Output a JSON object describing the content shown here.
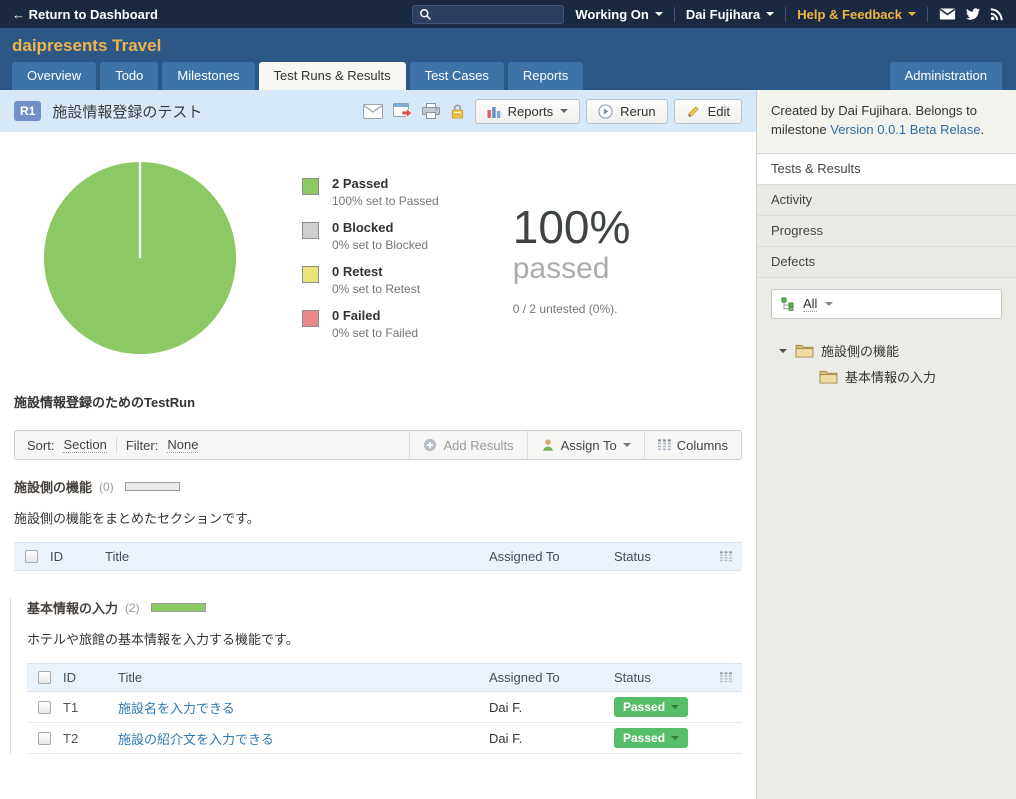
{
  "topbar": {
    "return_link": "← Return to Dashboard",
    "search_value": "",
    "working_on": "Working On",
    "user_menu": "Dai Fujihara",
    "help_menu": "Help & Feedback"
  },
  "project": {
    "title": "daipresents Travel"
  },
  "tabs": {
    "items": [
      {
        "label": "Overview",
        "active": false
      },
      {
        "label": "Todo",
        "active": false
      },
      {
        "label": "Milestones",
        "active": false
      },
      {
        "label": "Test Runs & Results",
        "active": true
      },
      {
        "label": "Test Cases",
        "active": false
      },
      {
        "label": "Reports",
        "active": false
      }
    ],
    "admin": "Administration"
  },
  "run": {
    "badge": "R1",
    "title": "施設情報登録のテスト",
    "buttons": {
      "reports": "Reports",
      "rerun": "Rerun",
      "edit": "Edit"
    }
  },
  "chart_data": {
    "type": "pie",
    "labels": [
      "Passed",
      "Blocked",
      "Retest",
      "Failed"
    ],
    "values": [
      2,
      0,
      0,
      0
    ],
    "percent_labels": [
      "100% set to Passed",
      "0% set to Blocked",
      "0% set to Retest",
      "0% set to Failed"
    ],
    "colors": [
      "#8BC962",
      "#CFCFCF",
      "#E8E37B",
      "#E98989"
    ],
    "total_tests": 2,
    "untested_count": 0,
    "summary_percent": "100%",
    "summary_label": "passed",
    "summary_note": "0 / 2 untested (0%)."
  },
  "legend": [
    {
      "count": "2 Passed",
      "detail": "100% set to Passed"
    },
    {
      "count": "0 Blocked",
      "detail": "0% set to Blocked"
    },
    {
      "count": "0 Retest",
      "detail": "0% set to Retest"
    },
    {
      "count": "0 Failed",
      "detail": "0% set to Failed"
    }
  ],
  "summary": {
    "percent": "100%",
    "label": "passed",
    "note": "0 / 2 untested (0%)."
  },
  "run_description": "施設情報登録のためのTestRun",
  "toolbar": {
    "sort_label": "Sort:",
    "sort_value": "Section",
    "filter_label": "Filter:",
    "filter_value": "None",
    "add_results": "Add Results",
    "assign_to": "Assign To",
    "columns": "Columns"
  },
  "sections": [
    {
      "title": "施設側の機能",
      "count": "(0)",
      "progress_percent": 0,
      "description": "施設側の機能をまとめたセクションです。",
      "columns": [
        "ID",
        "Title",
        "Assigned To",
        "Status"
      ],
      "rows": []
    },
    {
      "title": "基本情報の入力",
      "count": "(2)",
      "progress_percent": 100,
      "description": "ホテルや旅館の基本情報を入力する機能です。",
      "columns": [
        "ID",
        "Title",
        "Assigned To",
        "Status"
      ],
      "rows": [
        {
          "id": "T1",
          "title": "施設名を入力できる",
          "assigned": "Dai F.",
          "status": "Passed"
        },
        {
          "id": "T2",
          "title": "施設の紹介文を入力できる",
          "assigned": "Dai F.",
          "status": "Passed"
        }
      ]
    }
  ],
  "sidebar": {
    "created_prefix": "Created by Dai Fujihara. Belongs to milestone ",
    "milestone_link": "Version 0.0.1 Beta Relase",
    "created_suffix": ".",
    "menu": [
      {
        "label": "Tests & Results",
        "active": true
      },
      {
        "label": "Activity",
        "active": false
      },
      {
        "label": "Progress",
        "active": false
      },
      {
        "label": "Defects",
        "active": false
      }
    ],
    "tree_filter": "All",
    "tree": [
      {
        "label": "施設側の機能",
        "level": 0
      },
      {
        "label": "基本情報の入力",
        "level": 1
      }
    ]
  },
  "icons": {
    "search": "magnifier",
    "mail": "envelope",
    "twitter": "bird",
    "rss": "rss-waves",
    "run_email": "envelope",
    "run_export": "export-window",
    "run_print": "printer",
    "run_lock": "padlock",
    "reports": "bar-chart",
    "rerun": "play-circle",
    "edit": "pencil",
    "add_results": "plus-circle",
    "assign_to": "person",
    "columns": "column-list",
    "tree_filter": "hierarchy",
    "folder": "folder",
    "caret": "chevron-down"
  },
  "colors": {
    "topbar_bg": "#1B2842",
    "header_bg": "#2D5886",
    "title_gold": "#EDB44E",
    "help_yellow": "#EFB73F",
    "tab_inactive": "#3E73AA",
    "tab_active_bg": "#F6F6F3",
    "runbar_bg": "#D7E9F9",
    "badge_bg": "#7090C7",
    "pie_green": "#8CC964",
    "passed_btn_green": "#56BD68",
    "link_blue": "#2E7BB4",
    "table_head_bg": "#EAF3FB",
    "sidebar_bg": "#ECECE7"
  }
}
